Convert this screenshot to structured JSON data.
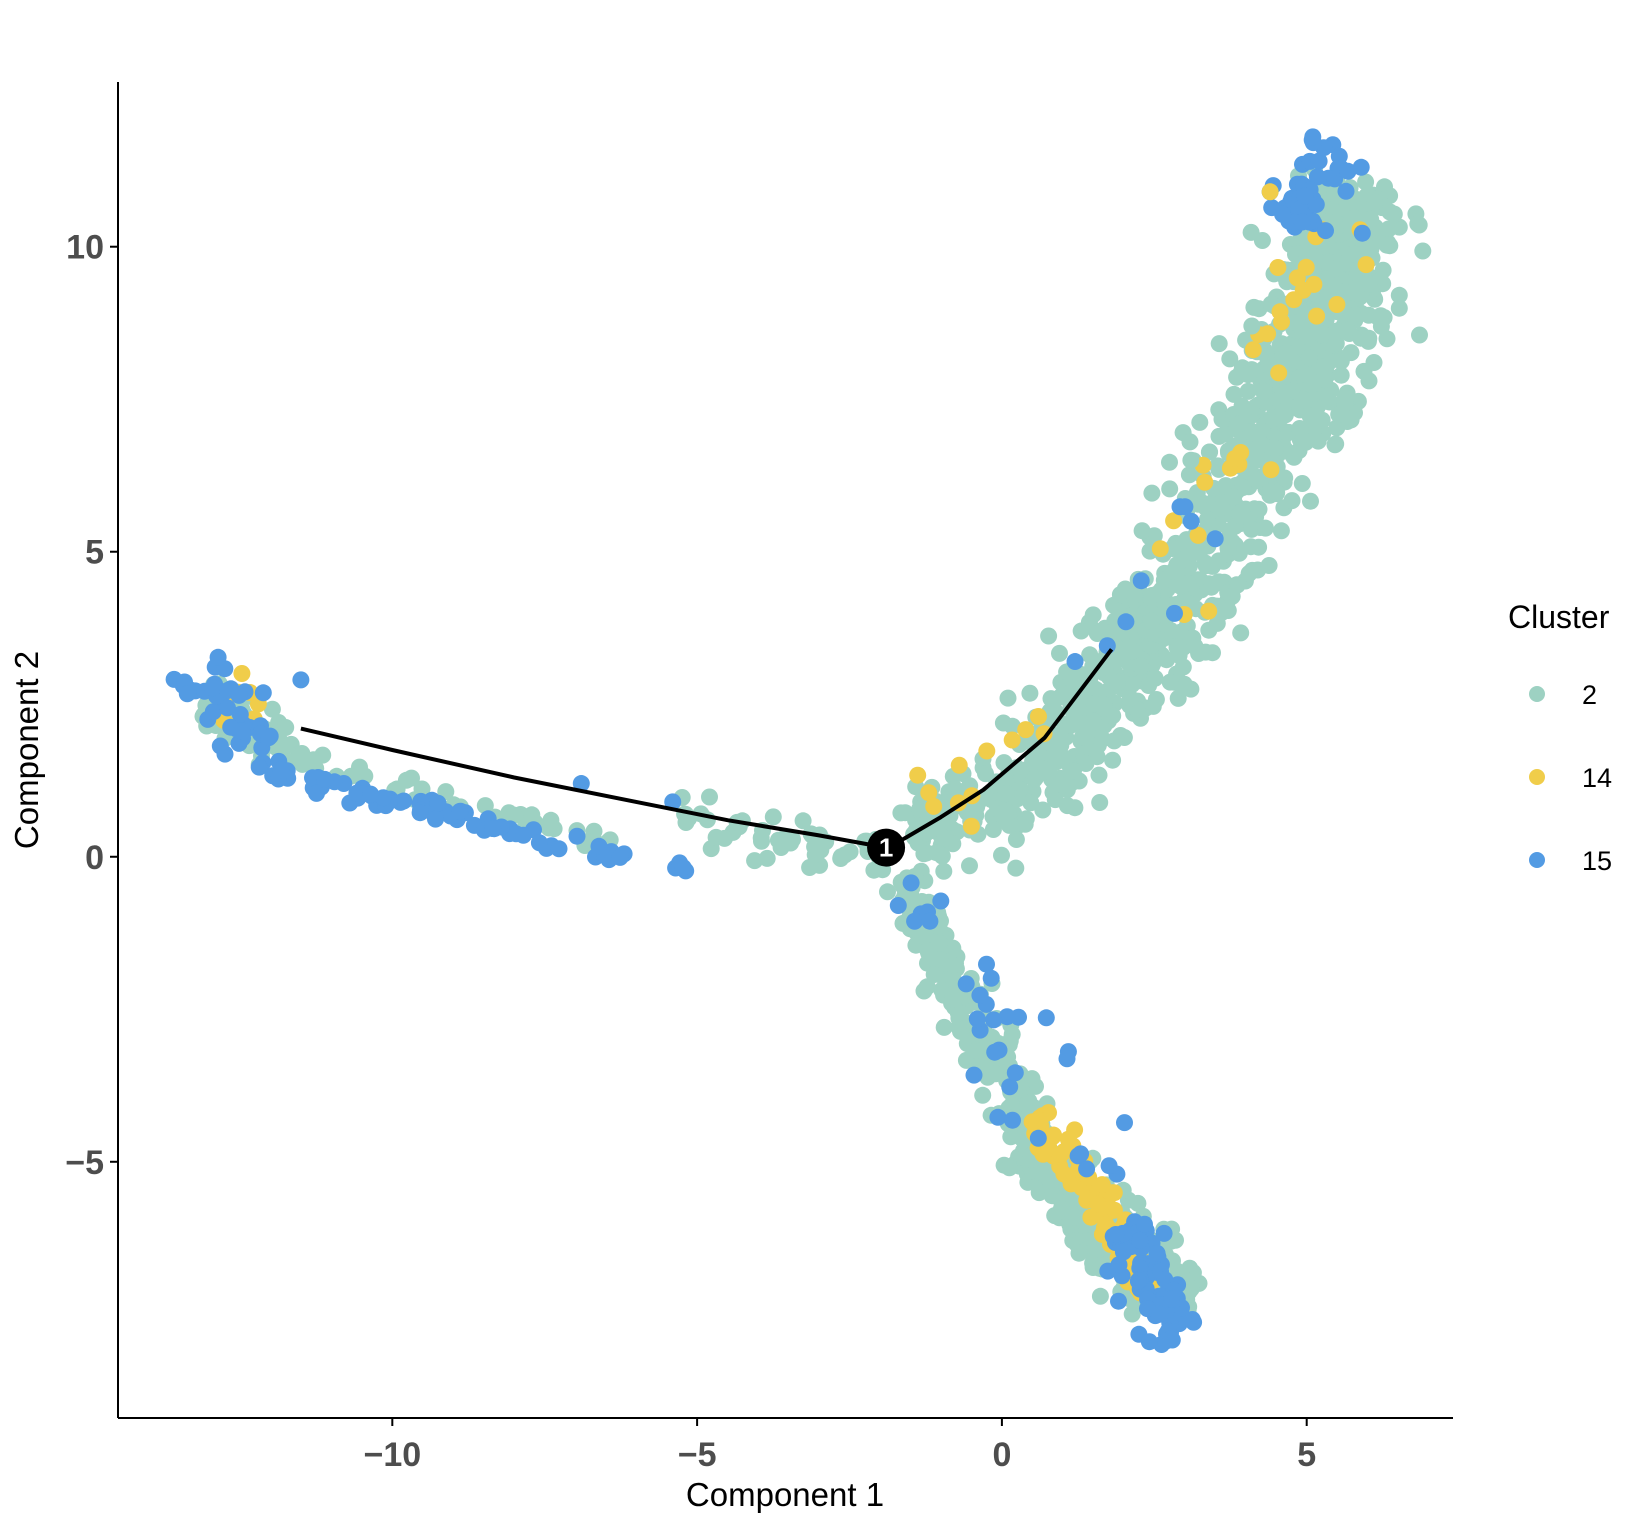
{
  "chart_data": {
    "type": "scatter",
    "title": "",
    "xlabel": "Component 1",
    "ylabel": "Component 2",
    "xlim": [
      -14.5,
      7.4
    ],
    "ylim": [
      -9.2,
      12.7
    ],
    "xticks": [
      -10,
      -5,
      0,
      5
    ],
    "yticks": [
      -5,
      0,
      5,
      10
    ],
    "xtick_labels": [
      "−10",
      "−5",
      "0",
      "5"
    ],
    "ytick_labels": [
      "−5",
      "0",
      "5",
      "10"
    ],
    "grid": false,
    "legend": {
      "title": "Cluster",
      "position": "right"
    },
    "colors": {
      "2": "#9dd1c2",
      "14": "#f0cd4a",
      "15": "#539be3"
    },
    "series": [
      {
        "name": "2",
        "color": "#9dd1c2",
        "segments": [
          {
            "from": [
              -13.1,
              2.4
            ],
            "to": [
              -11.8,
              1.8
            ],
            "n": 70,
            "spread": 0.22
          },
          {
            "from": [
              -11.6,
              1.65
            ],
            "to": [
              -6.3,
              0.2
            ],
            "n": 40,
            "spread": 0.1
          },
          {
            "from": [
              -5.3,
              0.6
            ],
            "to": [
              -1.8,
              0.05
            ],
            "n": 55,
            "spread": 0.18
          },
          {
            "from": [
              -1.5,
              0.4
            ],
            "to": [
              0.5,
              1.2
            ],
            "n": 120,
            "spread": 0.3
          },
          {
            "from": [
              0.5,
              1.2
            ],
            "to": [
              2.5,
              3.6
            ],
            "n": 260,
            "spread": 0.4
          },
          {
            "from": [
              2.5,
              3.6
            ],
            "to": [
              4.3,
              6.6
            ],
            "n": 260,
            "spread": 0.45
          },
          {
            "from": [
              4.3,
              6.6
            ],
            "to": [
              5.6,
              9.4
            ],
            "n": 320,
            "spread": 0.5
          },
          {
            "from": [
              5.3,
              9.4
            ],
            "to": [
              5.9,
              10.9
            ],
            "n": 260,
            "spread": 0.4
          },
          {
            "from": [
              -1.6,
              -0.4
            ],
            "to": [
              -0.7,
              -2.2
            ],
            "n": 110,
            "spread": 0.15
          },
          {
            "from": [
              -0.7,
              -2.2
            ],
            "to": [
              0.9,
              -5.5
            ],
            "n": 180,
            "spread": 0.22
          },
          {
            "from": [
              0.9,
              -5.5
            ],
            "to": [
              2.5,
              -6.9
            ],
            "n": 200,
            "spread": 0.3
          },
          {
            "from": [
              2.3,
              -7.0
            ],
            "to": [
              3.1,
              -7.3
            ],
            "n": 100,
            "spread": 0.2
          }
        ]
      },
      {
        "name": "14",
        "color": "#f0cd4a",
        "segments": [
          {
            "from": [
              -12.9,
              2.8
            ],
            "to": [
              -12.0,
              2.4
            ],
            "n": 8,
            "spread": 0.2
          },
          {
            "from": [
              -1.3,
              1.0
            ],
            "to": [
              0.8,
              2.2
            ],
            "n": 8,
            "spread": 0.3
          },
          {
            "from": [
              2.0,
              4.0
            ],
            "to": [
              4.4,
              7.0
            ],
            "n": 12,
            "spread": 0.4
          },
          {
            "from": [
              4.5,
              8.0
            ],
            "to": [
              5.4,
              10.5
            ],
            "n": 18,
            "spread": 0.35
          },
          {
            "from": [
              0.6,
              -4.2
            ],
            "to": [
              2.1,
              -6.4
            ],
            "n": 70,
            "spread": 0.15
          },
          {
            "from": [
              2.0,
              -6.4
            ],
            "to": [
              2.6,
              -7.3
            ],
            "n": 25,
            "spread": 0.15
          }
        ]
      },
      {
        "name": "15",
        "color": "#539be3",
        "segments": [
          {
            "from": [
              -13.3,
              3.1
            ],
            "to": [
              -12.1,
              1.5
            ],
            "n": 40,
            "spread": 0.25
          },
          {
            "from": [
              -12.0,
              1.4
            ],
            "to": [
              -6.1,
              -0.05
            ],
            "n": 75,
            "spread": 0.08
          },
          {
            "from": [
              -5.4,
              -0.05
            ],
            "to": [
              -5.1,
              -0.3
            ],
            "n": 4,
            "spread": 0.05
          },
          {
            "from": [
              -1.6,
              -0.3
            ],
            "to": [
              1.6,
              -5.4
            ],
            "n": 35,
            "spread": 0.35
          },
          {
            "from": [
              2.0,
              -6.0
            ],
            "to": [
              2.8,
              -7.9
            ],
            "n": 70,
            "spread": 0.25
          },
          {
            "from": [
              4.8,
              10.3
            ],
            "to": [
              5.6,
              11.5
            ],
            "n": 45,
            "spread": 0.35
          },
          {
            "from": [
              1.5,
              3.0
            ],
            "to": [
              3.5,
              5.5
            ],
            "n": 8,
            "spread": 0.3
          }
        ]
      }
    ],
    "points": [
      {
        "series": "15",
        "x": -6.9,
        "y": 1.2
      },
      {
        "series": "15",
        "x": -5.4,
        "y": 0.9
      },
      {
        "series": "15",
        "x": -11.5,
        "y": 2.9
      },
      {
        "series": "15",
        "x": 5.1,
        "y": 11.8
      },
      {
        "series": "15",
        "x": 4.4,
        "y": 10.9
      },
      {
        "series": "15",
        "x": 1.2,
        "y": 3.2
      },
      {
        "series": "2",
        "x": 1.3,
        "y": 3.7
      },
      {
        "series": "2",
        "x": 3.1,
        "y": 6.5
      },
      {
        "series": "2",
        "x": 4.1,
        "y": 8.7
      },
      {
        "series": "2",
        "x": 0.1,
        "y": 2.6
      },
      {
        "series": "14",
        "x": -1.2,
        "y": 1.05
      },
      {
        "series": "14",
        "x": -0.7,
        "y": 1.5
      },
      {
        "series": "14",
        "x": 0.6,
        "y": 2.3
      },
      {
        "series": "14",
        "x": -0.5,
        "y": 0.5
      },
      {
        "series": "14",
        "x": 4.4,
        "y": 10.9
      }
    ],
    "trajectory": [
      [
        -11.5,
        2.1
      ],
      [
        -10.0,
        1.75
      ],
      [
        -8.0,
        1.3
      ],
      [
        -6.0,
        0.9
      ],
      [
        -4.5,
        0.6
      ],
      [
        -3.0,
        0.35
      ],
      [
        -1.9,
        0.15
      ],
      [
        -1.6,
        0.3
      ],
      [
        -1.0,
        0.65
      ],
      [
        -0.3,
        1.1
      ],
      [
        0.7,
        1.95
      ],
      [
        1.8,
        3.4
      ]
    ],
    "branch_points": [
      {
        "x": -1.9,
        "y": 0.15,
        "label": "1"
      }
    ]
  },
  "legend_items": [
    {
      "label": "2",
      "color": "#9dd1c2"
    },
    {
      "label": "14",
      "color": "#f0cd4a"
    },
    {
      "label": "15",
      "color": "#539be3"
    }
  ]
}
